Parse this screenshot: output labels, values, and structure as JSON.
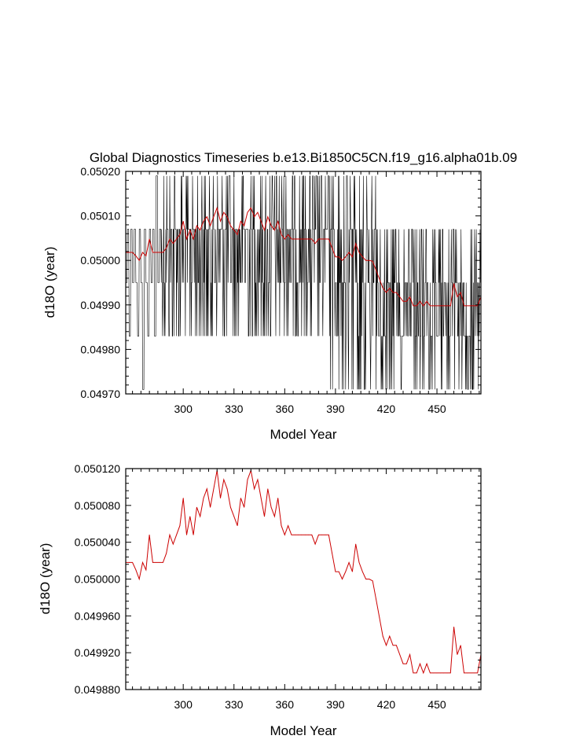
{
  "title": "Global Diagnostics Timeseries b.e13.Bi1850C5CN.f19_g16.alpha01b.09",
  "colors": {
    "annual": "#000000",
    "running_mean": "#cc0000"
  },
  "chart_data": [
    {
      "type": "line",
      "title": "Global Diagnostics Timeseries b.e13.Bi1850C5CN.f19_g16.alpha01b.09",
      "xlabel": "Model Year",
      "ylabel": "d18O (year)",
      "xlim": [
        266,
        476
      ],
      "ylim": [
        0.0497,
        0.0502
      ],
      "xticks": [
        300,
        330,
        360,
        390,
        420,
        450
      ],
      "xtick_labels": [
        "300",
        "330",
        "360",
        "390",
        "420",
        "450"
      ],
      "yticks": [
        0.0497,
        0.0498,
        0.0499,
        0.05,
        0.0501,
        0.0502
      ],
      "ytick_labels": [
        "0.04970",
        "0.04980",
        "0.04990",
        "0.05000",
        "0.05010",
        "0.05020"
      ],
      "grid": false,
      "series": [
        {
          "style": "annual-discrete",
          "color": "#000000",
          "levels": [
            0.04971,
            0.04983,
            0.04995,
            0.05007,
            0.05019
          ],
          "x_start": 266,
          "x_end": 476,
          "phases": [
            {
              "from": 266,
              "to": 287,
              "values": [
                0.04995,
                0.05007,
                0.04983,
                0.05007,
                0.04995,
                0.05007,
                0.04995,
                0.04983,
                0.05007,
                0.04995,
                0.04971,
                0.05007,
                0.04995,
                0.04983,
                0.05007,
                0.04995,
                0.05007,
                0.04983,
                0.05019,
                0.04995,
                0.05007
              ]
            },
            {
              "from": 287,
              "to": 386,
              "dist": [
                0.05019,
                0.05007,
                0.05007,
                0.04995,
                0.04983
              ]
            },
            {
              "from": 386,
              "to": 414,
              "dist": [
                0.05007,
                0.05007,
                0.04995,
                0.04983,
                0.04971,
                0.05019
              ]
            },
            {
              "from": 414,
              "to": 476,
              "dist": [
                0.04995,
                0.04983,
                0.04983,
                0.04971,
                0.04995,
                0.05007
              ]
            }
          ]
        },
        {
          "name": "",
          "color": "#cc0000",
          "x": [
            266,
            268,
            270,
            272,
            274,
            276,
            278,
            280,
            282,
            284,
            286,
            288,
            290,
            292,
            294,
            296,
            298,
            300,
            302,
            304,
            306,
            308,
            310,
            312,
            314,
            316,
            318,
            320,
            322,
            324,
            326,
            328,
            330,
            332,
            334,
            336,
            338,
            340,
            342,
            344,
            346,
            348,
            350,
            352,
            354,
            356,
            358,
            360,
            362,
            364,
            366,
            368,
            370,
            372,
            374,
            376,
            378,
            380,
            382,
            384,
            386,
            388,
            390,
            392,
            394,
            396,
            398,
            400,
            402,
            404,
            406,
            408,
            410,
            412,
            414,
            416,
            418,
            420,
            422,
            424,
            426,
            428,
            430,
            432,
            434,
            436,
            438,
            440,
            442,
            444,
            446,
            448,
            450,
            452,
            454,
            456,
            458,
            460,
            462,
            464,
            466,
            468,
            470,
            472,
            474,
            476
          ],
          "values": [
            0.050018,
            0.050018,
            0.050018,
            0.05001,
            0.05,
            0.050018,
            0.05001,
            0.050048,
            0.050018,
            0.050018,
            0.050018,
            0.050018,
            0.050028,
            0.050048,
            0.050038,
            0.050048,
            0.050058,
            0.050088,
            0.050048,
            0.050068,
            0.050048,
            0.050078,
            0.050068,
            0.050088,
            0.050098,
            0.050078,
            0.050098,
            0.050118,
            0.050088,
            0.050108,
            0.050098,
            0.050078,
            0.050068,
            0.050058,
            0.050088,
            0.050078,
            0.050108,
            0.050118,
            0.050098,
            0.050108,
            0.050088,
            0.050068,
            0.050098,
            0.050078,
            0.050068,
            0.050088,
            0.050058,
            0.050048,
            0.050058,
            0.050048,
            0.050048,
            0.050048,
            0.050048,
            0.050048,
            0.050048,
            0.050048,
            0.050038,
            0.050048,
            0.050048,
            0.050048,
            0.050048,
            0.050028,
            0.050008,
            0.050008,
            0.05,
            0.050008,
            0.050018,
            0.050008,
            0.050038,
            0.050018,
            0.050008,
            0.05,
            0.05,
            0.049998,
            0.049978,
            0.049958,
            0.049938,
            0.049928,
            0.049938,
            0.049928,
            0.049928,
            0.049918,
            0.049908,
            0.049908,
            0.049918,
            0.049898,
            0.049898,
            0.049908,
            0.049898,
            0.049908,
            0.049898,
            0.049898,
            0.049898,
            0.049898,
            0.049898,
            0.049898,
            0.049898,
            0.049948,
            0.049918,
            0.049928,
            0.049898,
            0.049898,
            0.049898,
            0.049898,
            0.049898,
            0.049918
          ]
        }
      ]
    },
    {
      "type": "line",
      "title": "",
      "xlabel": "Model Year",
      "ylabel": "d18O (year)",
      "xlim": [
        266,
        476
      ],
      "ylim": [
        0.04988,
        0.05012
      ],
      "xticks": [
        300,
        330,
        360,
        390,
        420,
        450
      ],
      "xtick_labels": [
        "300",
        "330",
        "360",
        "390",
        "420",
        "450"
      ],
      "yticks": [
        0.04988,
        0.04992,
        0.04996,
        0.05,
        0.05004,
        0.05008,
        0.05012
      ],
      "ytick_labels": [
        "0.049880",
        "0.049920",
        "0.049960",
        "0.050000",
        "0.050040",
        "0.050080",
        "0.050120"
      ],
      "grid": false,
      "series": [
        {
          "name": "",
          "color": "#cc0000",
          "x": [
            266,
            268,
            270,
            272,
            274,
            276,
            278,
            280,
            282,
            284,
            286,
            288,
            290,
            292,
            294,
            296,
            298,
            300,
            302,
            304,
            306,
            308,
            310,
            312,
            314,
            316,
            318,
            320,
            322,
            324,
            326,
            328,
            330,
            332,
            334,
            336,
            338,
            340,
            342,
            344,
            346,
            348,
            350,
            352,
            354,
            356,
            358,
            360,
            362,
            364,
            366,
            368,
            370,
            372,
            374,
            376,
            378,
            380,
            382,
            384,
            386,
            388,
            390,
            392,
            394,
            396,
            398,
            400,
            402,
            404,
            406,
            408,
            410,
            412,
            414,
            416,
            418,
            420,
            422,
            424,
            426,
            428,
            430,
            432,
            434,
            436,
            438,
            440,
            442,
            444,
            446,
            448,
            450,
            452,
            454,
            456,
            458,
            460,
            462,
            464,
            466,
            468,
            470,
            472,
            474,
            476
          ],
          "values": [
            0.050018,
            0.050018,
            0.050018,
            0.05001,
            0.05,
            0.050018,
            0.05001,
            0.050048,
            0.050018,
            0.050018,
            0.050018,
            0.050018,
            0.050028,
            0.050048,
            0.050038,
            0.050048,
            0.050058,
            0.050088,
            0.050048,
            0.050068,
            0.050048,
            0.050078,
            0.050068,
            0.050088,
            0.050098,
            0.050078,
            0.050098,
            0.050118,
            0.050088,
            0.050108,
            0.050098,
            0.050078,
            0.050068,
            0.050058,
            0.050088,
            0.050078,
            0.050108,
            0.050118,
            0.050098,
            0.050108,
            0.050088,
            0.050068,
            0.050098,
            0.050078,
            0.050068,
            0.050088,
            0.050058,
            0.050048,
            0.050058,
            0.050048,
            0.050048,
            0.050048,
            0.050048,
            0.050048,
            0.050048,
            0.050048,
            0.050038,
            0.050048,
            0.050048,
            0.050048,
            0.050048,
            0.050028,
            0.050008,
            0.050008,
            0.05,
            0.050008,
            0.050018,
            0.050008,
            0.050038,
            0.050018,
            0.050008,
            0.05,
            0.05,
            0.049998,
            0.049978,
            0.049958,
            0.049938,
            0.049928,
            0.049938,
            0.049928,
            0.049928,
            0.049918,
            0.049908,
            0.049908,
            0.049918,
            0.049898,
            0.049898,
            0.049908,
            0.049898,
            0.049908,
            0.049898,
            0.049898,
            0.049898,
            0.049898,
            0.049898,
            0.049898,
            0.049898,
            0.049948,
            0.049918,
            0.049928,
            0.049898,
            0.049898,
            0.049898,
            0.049898,
            0.049898,
            0.049918
          ]
        }
      ]
    }
  ]
}
